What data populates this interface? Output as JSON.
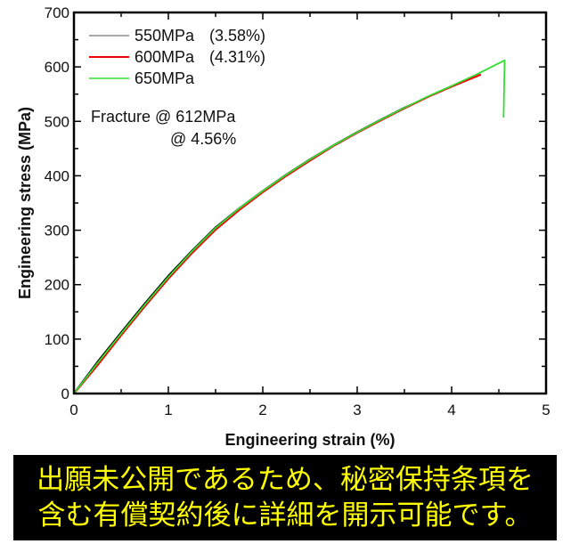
{
  "chart_data": {
    "type": "line",
    "title": "",
    "xlabel": "Engineering strain (%)",
    "ylabel": "Engineering stress (MPa)",
    "xlim": [
      0,
      5
    ],
    "ylim": [
      0,
      700
    ],
    "xticks": [
      0,
      1,
      2,
      3,
      4,
      5
    ],
    "yticks": [
      0,
      100,
      200,
      300,
      400,
      500,
      600,
      700
    ],
    "grid": false,
    "legend_position": "upper-left",
    "series": [
      {
        "name": "550MPa",
        "legend_label": "550MPa",
        "legend_note": "(3.58%)",
        "color": "#000000",
        "x": [
          0,
          0.25,
          0.5,
          0.75,
          1.0,
          1.25,
          1.5,
          1.75,
          2.0,
          2.25,
          2.5,
          2.75,
          3.0,
          3.25,
          3.5,
          3.58
        ],
        "y": [
          0,
          58,
          112,
          165,
          216,
          262,
          305,
          340,
          372,
          402,
          430,
          456,
          480,
          503,
          525,
          531
        ]
      },
      {
        "name": "600MPa",
        "legend_label": "600MPa",
        "legend_note": "(4.31%)",
        "color": "#ff0000",
        "x": [
          0,
          0.25,
          0.5,
          0.75,
          1.0,
          1.25,
          1.5,
          1.75,
          2.0,
          2.25,
          2.5,
          2.75,
          3.0,
          3.25,
          3.5,
          3.75,
          4.0,
          4.31
        ],
        "y": [
          0,
          52,
          107,
          160,
          211,
          258,
          301,
          337,
          370,
          400,
          428,
          455,
          479,
          502,
          524,
          545,
          564,
          586
        ]
      },
      {
        "name": "650MPa",
        "legend_label": "650MPa",
        "legend_note": "",
        "color": "#33dd33",
        "x": [
          0,
          0.25,
          0.5,
          0.75,
          1.0,
          1.25,
          1.5,
          1.75,
          2.0,
          2.25,
          2.5,
          2.75,
          3.0,
          3.25,
          3.5,
          3.75,
          4.0,
          4.25,
          4.56,
          4.56,
          4.55
        ],
        "y": [
          0,
          56,
          110,
          163,
          214,
          261,
          304,
          340,
          372,
          402,
          430,
          456,
          480,
          503,
          525,
          546,
          565,
          585,
          612,
          600,
          507
        ]
      }
    ],
    "annotations": [
      {
        "text": "Fracture @ 612MPa",
        "x": 0.2,
        "y": 507
      },
      {
        "text": "@ 4.56%",
        "x": 1.0,
        "y": 467
      }
    ]
  },
  "legend": {
    "items": [
      {
        "label": "550MPa",
        "note": "(3.58%)",
        "color": "#666666"
      },
      {
        "label": "600MPa",
        "note": "(4.31%)",
        "color": "#ee0000"
      },
      {
        "label": "650MPa",
        "note": "",
        "color": "#33dd33"
      }
    ]
  },
  "annotation": {
    "line1": "Fracture @ 612MPa",
    "line2": "@ 4.56%"
  },
  "axes": {
    "xlabel": "Engineering strain (%)",
    "ylabel": "Engineering stress (MPa)",
    "xtick_labels": [
      "0",
      "1",
      "2",
      "3",
      "4",
      "5"
    ],
    "ytick_labels": [
      "0",
      "100",
      "200",
      "300",
      "400",
      "500",
      "600",
      "700"
    ]
  },
  "banner": {
    "line1": "出願未公開であるため、秘密保持条項を",
    "line2": "含む有償契約後に詳細を開示可能です。",
    "background": "#000000",
    "text_color": "#ffff00"
  }
}
